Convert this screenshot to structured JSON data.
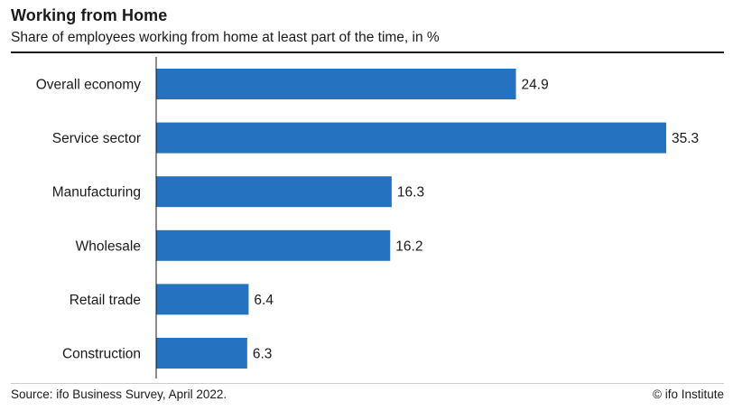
{
  "header": {
    "title": "Working from Home",
    "subtitle": "Share of employees working from home at least part of the time, in %"
  },
  "footer": {
    "source": "Source: ifo Business Survey, April 2022.",
    "copyright": "© ifo Institute"
  },
  "colors": {
    "bar": "#2573c0",
    "axis": "#1a1a1a"
  },
  "chart_data": {
    "type": "bar",
    "orientation": "horizontal",
    "title": "Working from Home",
    "subtitle": "Share of employees working from home at least part of the time, in %",
    "categories": [
      "Overall economy",
      "Service sector",
      "Manufacturing",
      "Wholesale",
      "Retail trade",
      "Construction"
    ],
    "values": [
      24.9,
      35.3,
      16.3,
      16.2,
      6.4,
      6.3
    ],
    "value_labels": [
      "24.9",
      "35.3",
      "16.3",
      "16.2",
      "6.4",
      "6.3"
    ],
    "xlim": [
      0,
      35.3
    ],
    "grid": false,
    "legend": "none"
  }
}
